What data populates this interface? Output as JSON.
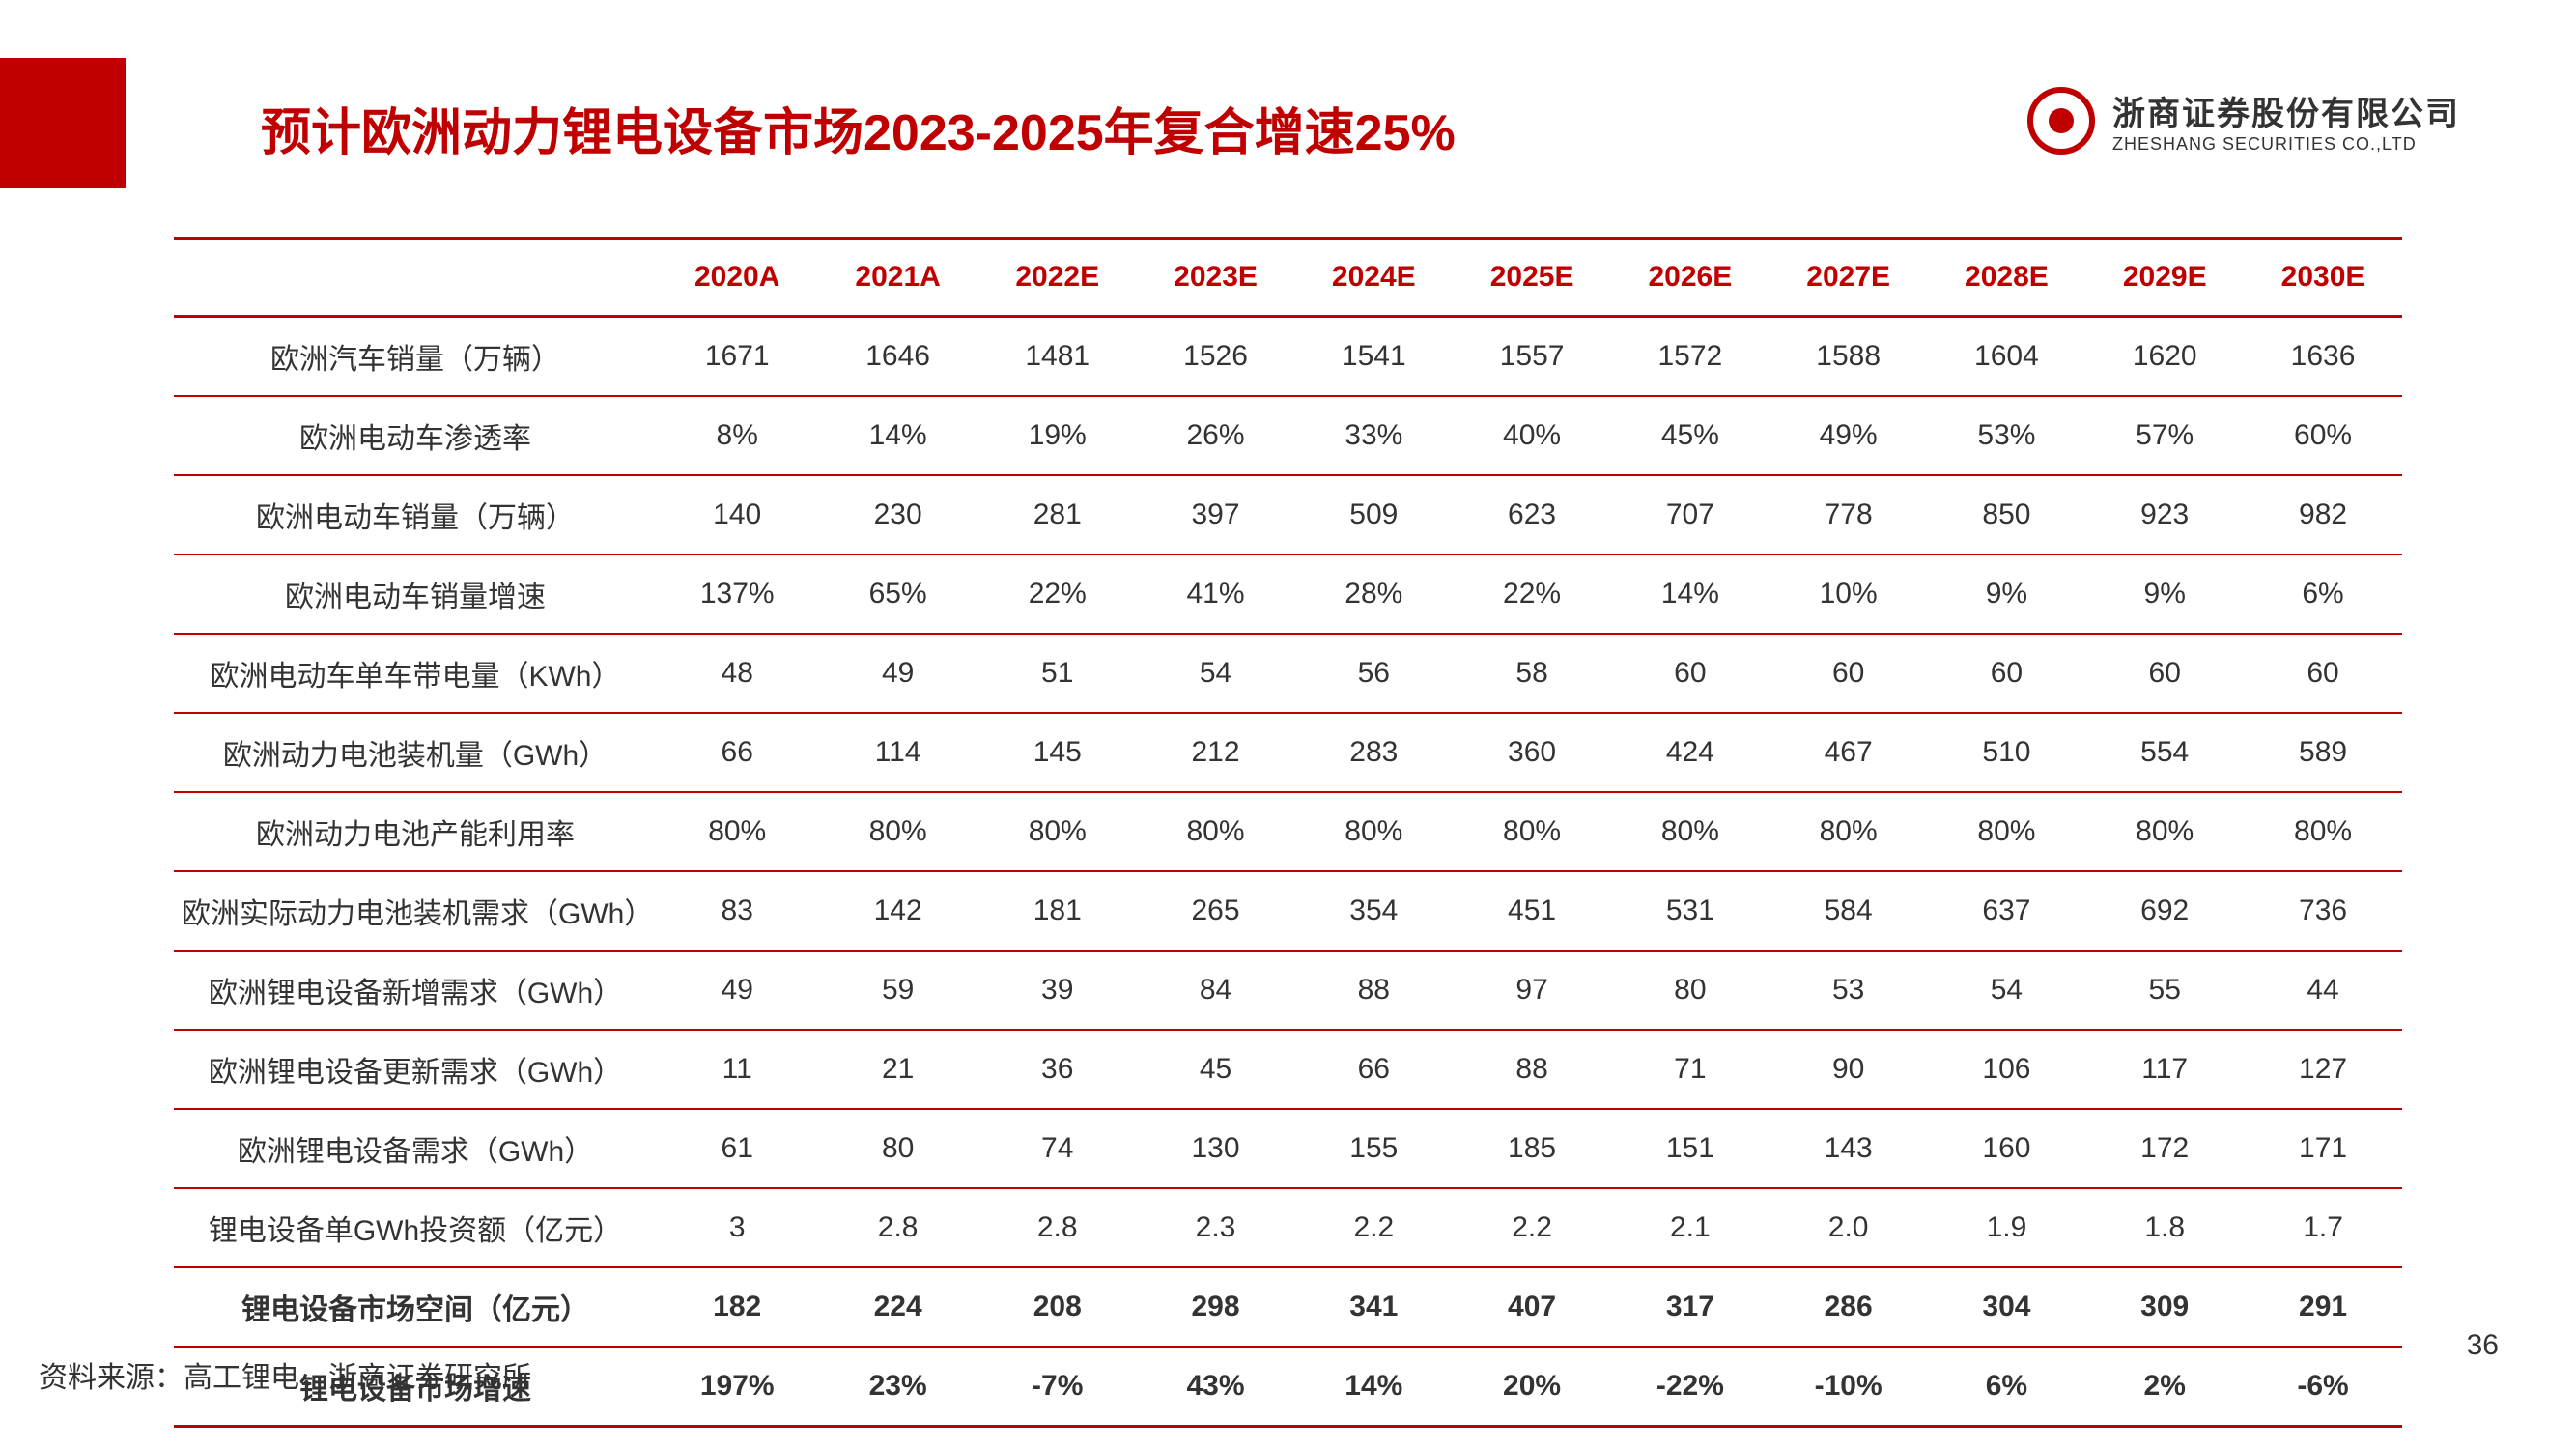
{
  "title": "预计欧洲动力锂电设备市场2023-2025年复合增速25%",
  "company": {
    "cn": "浙商证券股份有限公司",
    "en": "ZHESHANG SECURITIES CO.,LTD"
  },
  "source": "资料来源：高工锂电，浙商证券研究所",
  "page_number": "36",
  "table": {
    "columns": [
      "",
      "2020A",
      "2021A",
      "2022E",
      "2023E",
      "2024E",
      "2025E",
      "2026E",
      "2027E",
      "2028E",
      "2029E",
      "2030E"
    ],
    "rows": [
      {
        "label": "欧洲汽车销量（万辆）",
        "bold": false,
        "values": [
          "1671",
          "1646",
          "1481",
          "1526",
          "1541",
          "1557",
          "1572",
          "1588",
          "1604",
          "1620",
          "1636"
        ]
      },
      {
        "label": "欧洲电动车渗透率",
        "bold": false,
        "values": [
          "8%",
          "14%",
          "19%",
          "26%",
          "33%",
          "40%",
          "45%",
          "49%",
          "53%",
          "57%",
          "60%"
        ]
      },
      {
        "label": "欧洲电动车销量（万辆）",
        "bold": false,
        "values": [
          "140",
          "230",
          "281",
          "397",
          "509",
          "623",
          "707",
          "778",
          "850",
          "923",
          "982"
        ]
      },
      {
        "label": "欧洲电动车销量增速",
        "bold": false,
        "values": [
          "137%",
          "65%",
          "22%",
          "41%",
          "28%",
          "22%",
          "14%",
          "10%",
          "9%",
          "9%",
          "6%"
        ]
      },
      {
        "label": "欧洲电动车单车带电量（KWh）",
        "bold": false,
        "values": [
          "48",
          "49",
          "51",
          "54",
          "56",
          "58",
          "60",
          "60",
          "60",
          "60",
          "60"
        ]
      },
      {
        "label": "欧洲动力电池装机量（GWh）",
        "bold": false,
        "values": [
          "66",
          "114",
          "145",
          "212",
          "283",
          "360",
          "424",
          "467",
          "510",
          "554",
          "589"
        ]
      },
      {
        "label": "欧洲动力电池产能利用率",
        "bold": false,
        "values": [
          "80%",
          "80%",
          "80%",
          "80%",
          "80%",
          "80%",
          "80%",
          "80%",
          "80%",
          "80%",
          "80%"
        ]
      },
      {
        "label": "欧洲实际动力电池装机需求（GWh）",
        "bold": false,
        "values": [
          "83",
          "142",
          "181",
          "265",
          "354",
          "451",
          "531",
          "584",
          "637",
          "692",
          "736"
        ]
      },
      {
        "label": "欧洲锂电设备新增需求（GWh）",
        "bold": false,
        "values": [
          "49",
          "59",
          "39",
          "84",
          "88",
          "97",
          "80",
          "53",
          "54",
          "55",
          "44"
        ]
      },
      {
        "label": "欧洲锂电设备更新需求（GWh）",
        "bold": false,
        "values": [
          "11",
          "21",
          "36",
          "45",
          "66",
          "88",
          "71",
          "90",
          "106",
          "117",
          "127"
        ]
      },
      {
        "label": "欧洲锂电设备需求（GWh）",
        "bold": false,
        "values": [
          "61",
          "80",
          "74",
          "130",
          "155",
          "185",
          "151",
          "143",
          "160",
          "172",
          "171"
        ]
      },
      {
        "label": "锂电设备单GWh投资额（亿元）",
        "bold": false,
        "values": [
          "3",
          "2.8",
          "2.8",
          "2.3",
          "2.2",
          "2.2",
          "2.1",
          "2.0",
          "1.9",
          "1.8",
          "1.7"
        ]
      },
      {
        "label": "锂电设备市场空间（亿元）",
        "bold": true,
        "values": [
          "182",
          "224",
          "208",
          "298",
          "341",
          "407",
          "317",
          "286",
          "304",
          "309",
          "291"
        ]
      },
      {
        "label": "锂电设备市场增速",
        "bold": true,
        "values": [
          "197%",
          "23%",
          "-7%",
          "43%",
          "14%",
          "20%",
          "-22%",
          "-10%",
          "6%",
          "2%",
          "-6%"
        ]
      }
    ]
  }
}
